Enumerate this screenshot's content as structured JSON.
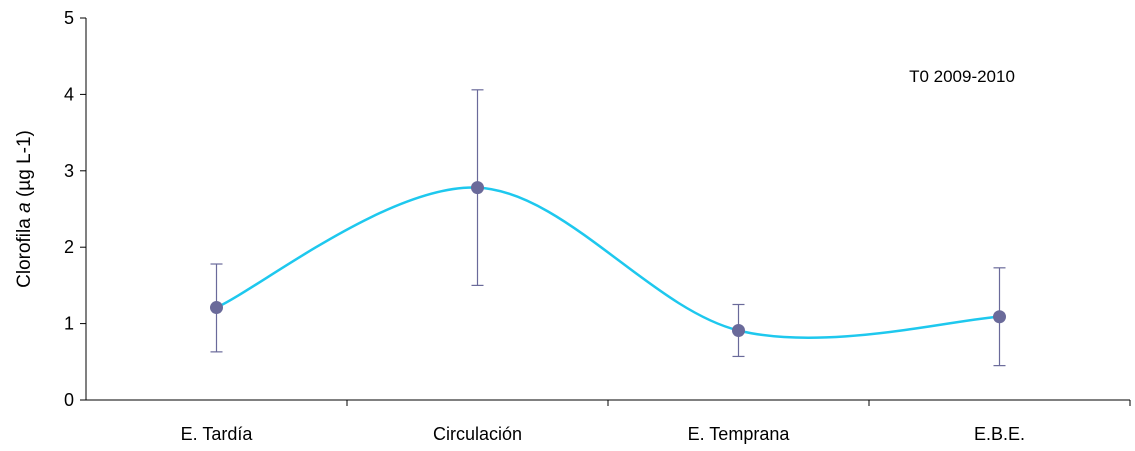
{
  "chart_data": {
    "type": "line",
    "title": "",
    "annotation": "T0 2009-2010",
    "ylabel_main": "Clorofila ",
    "ylabel_italic": "a",
    "ylabel_unit": " (µg L-1)",
    "xlabel": "",
    "categories": [
      "E. Tardía",
      "Circulación",
      "E. Temprana",
      "E.B.E."
    ],
    "series": [
      {
        "values": [
          1.21,
          2.78,
          0.91,
          1.09
        ],
        "error_upper": [
          1.78,
          4.06,
          1.25,
          1.73
        ],
        "error_lower": [
          0.63,
          1.5,
          0.57,
          0.45
        ],
        "line_color": "#1ec8ee",
        "marker_color": "#6a6a9a",
        "error_color": "#6a6a9a"
      }
    ],
    "smooth": true,
    "ylim": [
      0,
      5
    ],
    "yticks": [
      "0",
      "1",
      "2",
      "3",
      "4",
      "5"
    ],
    "grid": false,
    "legend": "none"
  }
}
